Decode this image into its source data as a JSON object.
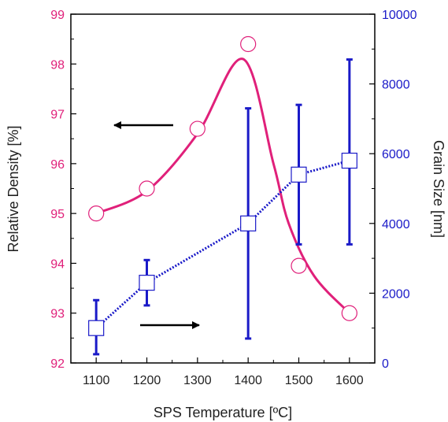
{
  "chart_data": {
    "type": "line",
    "title": "",
    "xlabel": "SPS Temperature [ºC]",
    "ylabel_left": "Relative Density [%]",
    "ylabel_right": "Grain Size [nm]",
    "x": [
      1100,
      1200,
      1300,
      1400,
      1500,
      1600
    ],
    "x_ticks": [
      "1100",
      "1200",
      "1300",
      "1400",
      "1500",
      "1600"
    ],
    "xlim": [
      1050,
      1650
    ],
    "ylim_left": [
      92,
      99
    ],
    "ylim_right": [
      0,
      10000
    ],
    "y_ticks_left": [
      "92",
      "93",
      "94",
      "95",
      "96",
      "97",
      "98",
      "99"
    ],
    "y_ticks_right": [
      "0",
      "2000",
      "4000",
      "6000",
      "8000",
      "10000"
    ],
    "grid": false,
    "legend": "none",
    "series": [
      {
        "axis": "left",
        "color": "#e0207a",
        "marker": "open-circle",
        "line": "solid-smooth",
        "values": [
          95.0,
          95.5,
          96.7,
          98.4,
          93.95,
          93.0
        ],
        "fit_curve": [
          [
            1100,
            95.0
          ],
          [
            1200,
            95.45
          ],
          [
            1300,
            96.6
          ],
          [
            1390,
            98.1
          ],
          [
            1450,
            96.0
          ],
          [
            1480,
            94.8
          ],
          [
            1530,
            93.75
          ],
          [
            1600,
            93.0
          ]
        ]
      },
      {
        "axis": "right",
        "color": "#1a1ac8",
        "marker": "open-square",
        "line": "dotted",
        "values": [
          1000,
          2300,
          null,
          4000,
          5400,
          5800
        ],
        "error_bars": [
          [
            250,
            1800
          ],
          [
            1650,
            2950
          ],
          null,
          [
            700,
            7300
          ],
          [
            3400,
            7400
          ],
          [
            3400,
            8700
          ]
        ]
      }
    ],
    "annotations": [
      {
        "kind": "arrow",
        "direction": "left",
        "points_to_axis": "left"
      },
      {
        "kind": "arrow",
        "direction": "right",
        "points_to_axis": "right"
      }
    ]
  }
}
